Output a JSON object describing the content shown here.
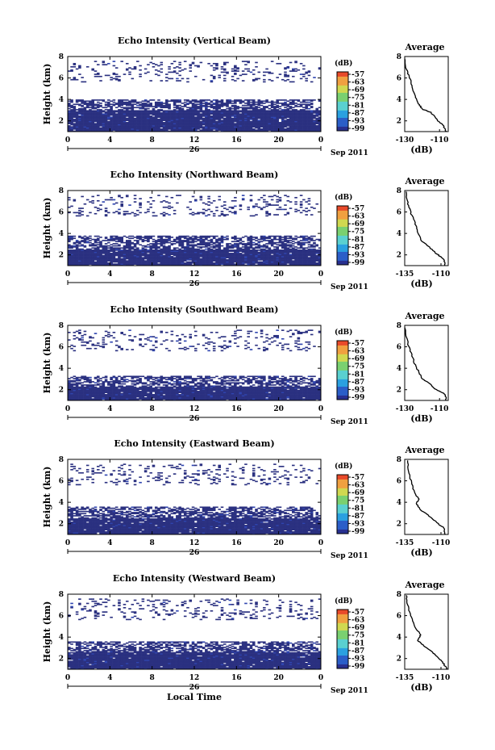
{
  "chart_data": [
    {
      "type": "heatmap",
      "title": "Echo Intensity (Vertical Beam)",
      "ylabel": "Height (km)",
      "xlim": [
        0,
        24
      ],
      "ylim": [
        1,
        8
      ],
      "xticks": [
        "0",
        "4",
        "8",
        "12",
        "16",
        "20",
        "0"
      ],
      "yticks": [
        "2",
        "4",
        "6",
        "8"
      ],
      "date_label": "26",
      "month_label": "Sep 2011",
      "colorbar": {
        "unit": "(dB)",
        "labels": [
          "-57",
          "-63",
          "-69",
          "-75",
          "-81",
          "-87",
          "-93",
          "-99"
        ]
      },
      "echo_layers": [
        {
          "name": "dense",
          "height_range": [
            1.0,
            3.0
          ],
          "extent": "solid"
        },
        {
          "name": "upper",
          "height_range": [
            3.0,
            4.0
          ],
          "extent": "patchy"
        },
        {
          "name": "aloft",
          "height_range": [
            5.5,
            7.5
          ],
          "extent": "sparse"
        }
      ]
    },
    {
      "type": "heatmap",
      "title": "Echo Intensity (Northward Beam)",
      "ylabel": "Height (km)",
      "xlim": [
        0,
        24
      ],
      "ylim": [
        1,
        8
      ],
      "xticks": [
        "0",
        "4",
        "8",
        "12",
        "16",
        "20",
        "0"
      ],
      "yticks": [
        "2",
        "4",
        "6",
        "8"
      ],
      "date_label": "26",
      "month_label": "Sep 2011",
      "colorbar": {
        "unit": "(dB)",
        "labels": [
          "-57",
          "-63",
          "-69",
          "-75",
          "-81",
          "-87",
          "-93",
          "-99"
        ]
      },
      "echo_layers": [
        {
          "name": "dense",
          "height_range": [
            1.0,
            2.5
          ],
          "extent": "solid"
        },
        {
          "name": "upper",
          "height_range": [
            2.5,
            3.8
          ],
          "extent": "patchy"
        },
        {
          "name": "aloft",
          "height_range": [
            5.5,
            7.5
          ],
          "extent": "sparse"
        }
      ]
    },
    {
      "type": "heatmap",
      "title": "Echo Intensity (Southward Beam)",
      "ylabel": "Height (km)",
      "xlim": [
        0,
        24
      ],
      "ylim": [
        1,
        8
      ],
      "xticks": [
        "0",
        "4",
        "8",
        "12",
        "16",
        "20",
        "0"
      ],
      "yticks": [
        "2",
        "4",
        "6",
        "8"
      ],
      "date_label": "26",
      "month_label": "Sep 2011",
      "colorbar": {
        "unit": "(dB)",
        "labels": [
          "-57",
          "-63",
          "-69",
          "-75",
          "-81",
          "-87",
          "-93",
          "-99"
        ]
      },
      "echo_layers": [
        {
          "name": "dense",
          "height_range": [
            1.0,
            2.3
          ],
          "extent": "solid"
        },
        {
          "name": "upper",
          "height_range": [
            2.3,
            3.3
          ],
          "extent": "patchy"
        },
        {
          "name": "aloft",
          "height_range": [
            5.5,
            7.5
          ],
          "extent": "sparse"
        }
      ]
    },
    {
      "type": "heatmap",
      "title": "Echo Intensity (Eastward Beam)",
      "ylabel": "Height (km)",
      "xlim": [
        0,
        24
      ],
      "ylim": [
        1,
        8
      ],
      "xticks": [
        "0",
        "4",
        "8",
        "12",
        "16",
        "20",
        "0"
      ],
      "yticks": [
        "2",
        "4",
        "6",
        "8"
      ],
      "date_label": "26",
      "month_label": "Sep 2011",
      "colorbar": {
        "unit": "(dB)",
        "labels": [
          "-57",
          "-63",
          "-69",
          "-75",
          "-81",
          "-87",
          "-93",
          "-99"
        ]
      },
      "echo_layers": [
        {
          "name": "dense",
          "height_range": [
            1.0,
            2.5
          ],
          "extent": "solid"
        },
        {
          "name": "upper",
          "height_range": [
            2.5,
            3.6
          ],
          "extent": "patchy"
        },
        {
          "name": "aloft",
          "height_range": [
            5.5,
            7.5
          ],
          "extent": "sparse"
        }
      ]
    },
    {
      "type": "heatmap",
      "title": "Echo Intensity (Westward Beam)",
      "ylabel": "Height (km)",
      "xlabel": "Local Time",
      "xlim": [
        0,
        24
      ],
      "ylim": [
        1,
        8
      ],
      "xticks": [
        "0",
        "4",
        "8",
        "12",
        "16",
        "20",
        "0"
      ],
      "yticks": [
        "2",
        "4",
        "6",
        "8"
      ],
      "date_label": "26",
      "month_label": "Sep 2011",
      "colorbar": {
        "unit": "(dB)",
        "labels": [
          "-57",
          "-63",
          "-69",
          "-75",
          "-81",
          "-87",
          "-93",
          "-99"
        ]
      },
      "echo_layers": [
        {
          "name": "dense",
          "height_range": [
            1.0,
            2.6
          ],
          "extent": "solid"
        },
        {
          "name": "upper",
          "height_range": [
            2.6,
            3.6
          ],
          "extent": "patchy"
        },
        {
          "name": "aloft",
          "height_range": [
            5.5,
            7.5
          ],
          "extent": "sparse"
        }
      ]
    },
    {
      "type": "line",
      "title": "Average",
      "xlabel": "(dB)",
      "xlim": [
        -130,
        -105
      ],
      "ylim": [
        1,
        8
      ],
      "xticks": [
        "-130",
        "-110"
      ],
      "yticks": [
        "2",
        "4",
        "6",
        "8"
      ],
      "series": [
        {
          "x": [
            -106,
            -108,
            -111,
            -115,
            -120,
            -122,
            -124,
            -126,
            -127,
            -129,
            -130
          ],
          "y": [
            1.0,
            1.6,
            2.0,
            2.8,
            3.1,
            3.6,
            4.3,
            5.3,
            6.0,
            6.8,
            7.8
          ]
        }
      ]
    },
    {
      "type": "line",
      "title": "Average",
      "xlabel": "(dB)",
      "xlim": [
        -135,
        -105
      ],
      "ylim": [
        1,
        8
      ],
      "xticks": [
        "-135",
        "-110"
      ],
      "yticks": [
        "2",
        "4",
        "6",
        "8"
      ],
      "series": [
        {
          "x": [
            -107,
            -108,
            -112,
            -117,
            -124,
            -126,
            -128,
            -131,
            -133,
            -134
          ],
          "y": [
            1.0,
            1.6,
            2.0,
            2.6,
            3.4,
            4.2,
            5.0,
            6.0,
            6.9,
            7.9
          ]
        }
      ]
    },
    {
      "type": "line",
      "title": "Average",
      "xlabel": "(dB)",
      "xlim": [
        -130,
        -105
      ],
      "ylim": [
        1,
        8
      ],
      "xticks": [
        "-130",
        "-110"
      ],
      "yticks": [
        "2",
        "4",
        "6",
        "8"
      ],
      "series": [
        {
          "x": [
            -106,
            -107,
            -112,
            -116,
            -120,
            -122,
            -124,
            -126,
            -128,
            -130
          ],
          "y": [
            1.0,
            1.6,
            2.0,
            2.6,
            3.0,
            3.7,
            4.3,
            5.3,
            6.2,
            7.8
          ]
        }
      ]
    },
    {
      "type": "line",
      "title": "Average",
      "xlabel": "(dB)",
      "xlim": [
        -135,
        -105
      ],
      "ylim": [
        1,
        8
      ],
      "xticks": [
        "-135",
        "-110"
      ],
      "yticks": [
        "2",
        "4",
        "6",
        "8"
      ],
      "series": [
        {
          "x": [
            -107,
            -108,
            -112,
            -118,
            -124,
            -127,
            -125,
            -128,
            -130,
            -132,
            -133
          ],
          "y": [
            1.0,
            1.6,
            2.0,
            2.7,
            3.3,
            3.9,
            4.3,
            4.8,
            5.7,
            6.7,
            7.9
          ]
        }
      ]
    },
    {
      "type": "line",
      "title": "Average",
      "xlabel": "(dB)",
      "xlim": [
        -135,
        -105
      ],
      "ylim": [
        1,
        8
      ],
      "xticks": [
        "-135",
        "-110"
      ],
      "yticks": [
        "2",
        "4",
        "6",
        "8"
      ],
      "series": [
        {
          "x": [
            -106,
            -108,
            -111,
            -116,
            -122,
            -126,
            -124,
            -128,
            -131,
            -133,
            -134
          ],
          "y": [
            1.0,
            1.5,
            2.0,
            2.6,
            3.2,
            3.7,
            4.2,
            5.0,
            6.0,
            7.0,
            7.9
          ]
        }
      ]
    }
  ],
  "colors": {
    "background_echo": "#2a3080",
    "colorbar": [
      "#283090",
      "#2b5ec8",
      "#2aa0e0",
      "#5ad0d0",
      "#7ad070",
      "#d0d850",
      "#f0a040",
      "#e84a2a"
    ]
  }
}
